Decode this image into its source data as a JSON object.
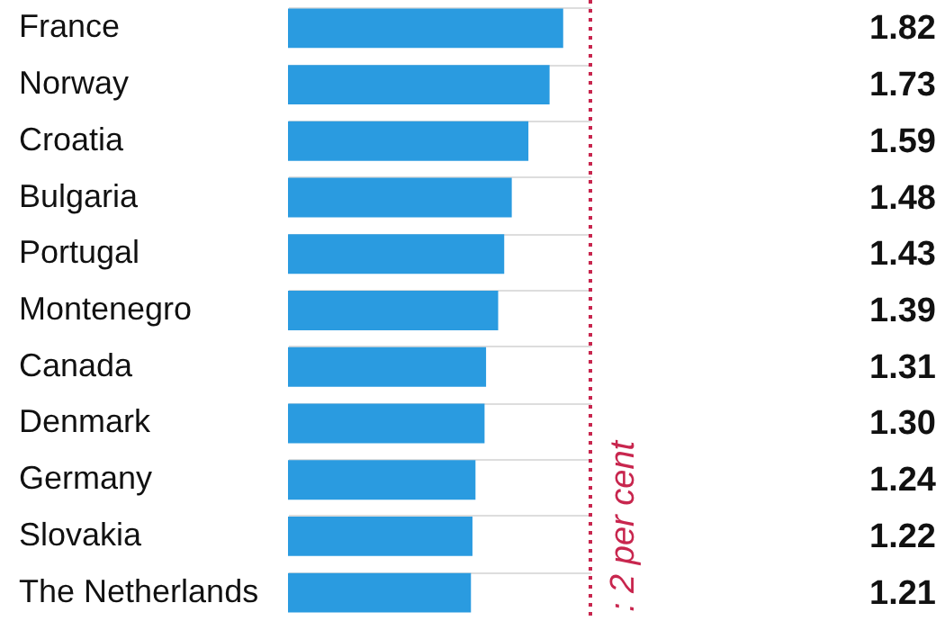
{
  "chart_data": {
    "type": "bar",
    "orientation": "horizontal",
    "categories": [
      "France",
      "Norway",
      "Croatia",
      "Bulgaria",
      "Portugal",
      "Montenegro",
      "Canada",
      "Denmark",
      "Germany",
      "Slovakia",
      "The Netherlands"
    ],
    "values": [
      1.82,
      1.73,
      1.59,
      1.48,
      1.43,
      1.39,
      1.31,
      1.3,
      1.24,
      1.22,
      1.21
    ],
    "value_labels": [
      "1.82",
      "1.73",
      "1.59",
      "1.48",
      "1.43",
      "1.39",
      "1.31",
      "1.30",
      "1.24",
      "1.22",
      "1.21"
    ],
    "color": "#2a9be0",
    "grid": "y",
    "ref_lines": [
      {
        "axis": "x",
        "value": 2,
        "label": ": 2 per cent",
        "color": "#c8264e",
        "line_style": "dotted"
      }
    ]
  }
}
